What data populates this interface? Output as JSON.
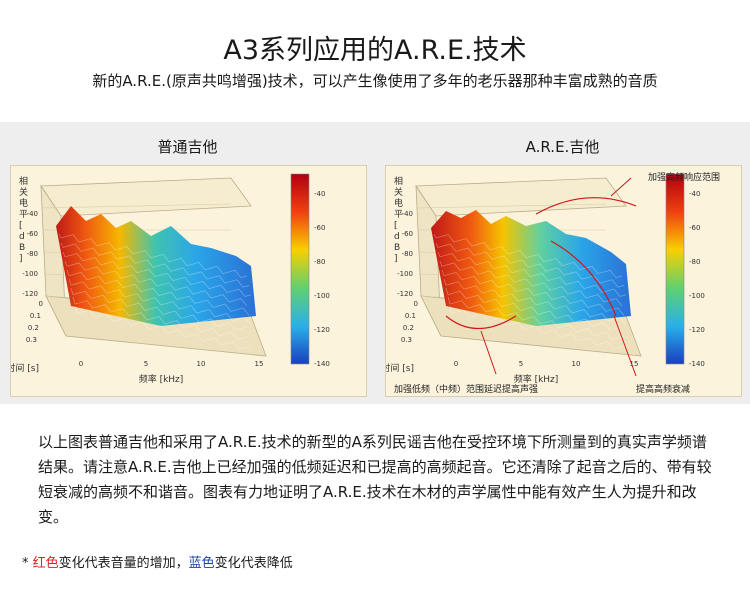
{
  "page": {
    "title": "A3系列应用的A.R.E.技术",
    "subtitle": "新的A.R.E.(原声共鸣增强)技术，可以产生像使用了多年的老乐器那种丰富成熟的音质"
  },
  "chart_data": [
    {
      "type": "surface",
      "title": "普通吉他",
      "ylabel": "相关电平 [dB]",
      "xlabel": "频率 [kHz]",
      "zlabel": "时间 [s]",
      "y_ticks": [
        "-40",
        "-60",
        "-80",
        "-100",
        "-120"
      ],
      "x_ticks": [
        "0",
        "5",
        "10",
        "15"
      ],
      "z_ticks": [
        "0",
        "0.1",
        "0.2",
        "0.3"
      ],
      "colorbar_ticks": [
        "-40",
        "-60",
        "-80",
        "-100",
        "-120",
        "-140"
      ],
      "annotations": []
    },
    {
      "type": "surface",
      "title": "A.R.E.吉他",
      "ylabel": "相关电平 [dB]",
      "xlabel": "频率 [kHz]",
      "zlabel": "时间 [s]",
      "y_ticks": [
        "-40",
        "-60",
        "-80",
        "-100",
        "-120"
      ],
      "x_ticks": [
        "0",
        "5",
        "10",
        "15"
      ],
      "z_ticks": [
        "0",
        "0.1",
        "0.2",
        "0.3"
      ],
      "colorbar_ticks": [
        "-40",
        "-60",
        "-80",
        "-100",
        "-120",
        "-140"
      ],
      "annotations": [
        "加强高频响应范围",
        "加强低频（中频）范围延迟提高声强",
        "提高高频衰减"
      ]
    }
  ],
  "body_text": "以上图表普通吉他和采用了A.R.E.技术的新型的A系列民谣吉他在受控环境下所测量到的真实声学频谱结果。请注意A.R.E.吉他上已经加强的低频延迟和已提高的高频起音。它还清除了起音之后的、带有较短衰减的高频不和谐音。图表有力地证明了A.R.E.技术在木材的声学属性中能有效产生人为提升和改变。",
  "footnote": {
    "prefix": "* ",
    "red_word": "红色",
    "middle": "变化代表音量的增加，",
    "blue_word": "蓝色",
    "end": "变化代表降低"
  },
  "colors": {
    "red": "#e02020",
    "blue": "#1a3fae"
  }
}
